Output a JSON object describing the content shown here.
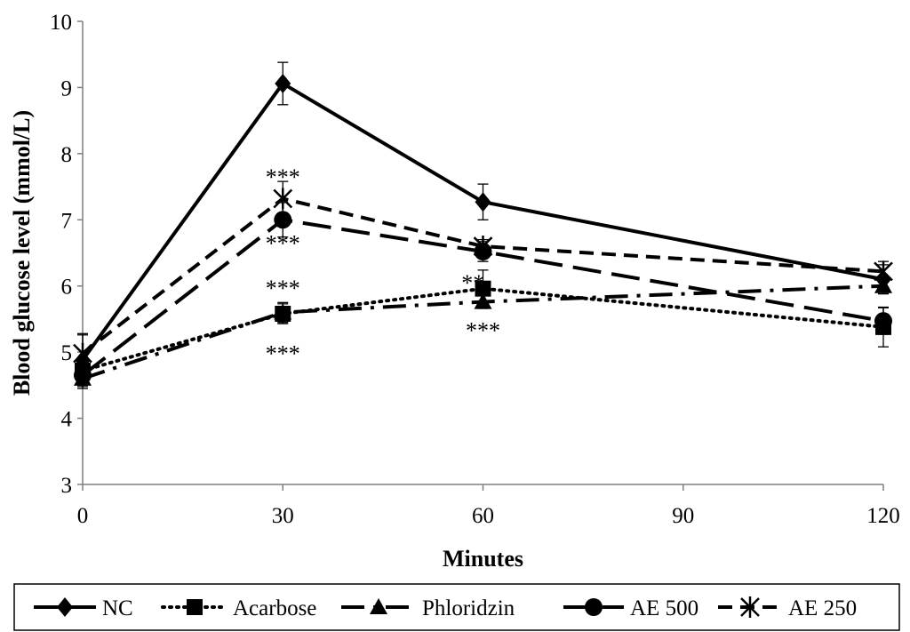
{
  "chart_data": {
    "type": "line",
    "title": "",
    "xlabel": "Minutes",
    "ylabel": "Blood glucose level (mmol/L)",
    "x": [
      0,
      30,
      60,
      120
    ],
    "xticks": [
      0,
      30,
      60,
      90,
      120
    ],
    "yticks": [
      3,
      4,
      5,
      6,
      7,
      8,
      9,
      10
    ],
    "xlim": [
      0,
      120
    ],
    "ylim": [
      3,
      10
    ],
    "grid": false,
    "legend": "bottom",
    "series": [
      {
        "name": "NC",
        "line": "solid",
        "marker": "diamond",
        "values": [
          4.88,
          9.06,
          7.27,
          6.1
        ],
        "errors": [
          0.38,
          0.32,
          0.27,
          0.22
        ]
      },
      {
        "name": "Acarbose",
        "line": "dotted",
        "marker": "square",
        "values": [
          4.72,
          5.58,
          5.96,
          5.38
        ],
        "errors": [
          0.2,
          0.15,
          0.28,
          0.3
        ]
      },
      {
        "name": "Phloridzin",
        "line": "dashdot",
        "marker": "triangle",
        "values": [
          4.6,
          5.6,
          5.76,
          6.0
        ],
        "errors": [
          0.12,
          0.15,
          0.1,
          0.1
        ]
      },
      {
        "name": "AE 500",
        "line": "longdash",
        "marker": "circle",
        "values": [
          4.65,
          7.0,
          6.52,
          5.47
        ],
        "errors": [
          0.2,
          0.26,
          0.15,
          0.2
        ]
      },
      {
        "name": "AE 250",
        "line": "dash",
        "marker": "star",
        "values": [
          4.98,
          7.32,
          6.6,
          6.22
        ],
        "errors": [
          0.3,
          0.26,
          0.1,
          0.15
        ]
      }
    ],
    "annotations": [
      {
        "text": "***",
        "x": 30,
        "y": 7.65
      },
      {
        "text": "***",
        "x": 30,
        "y": 6.65
      },
      {
        "text": "***",
        "x": 30,
        "y": 5.97
      },
      {
        "text": "***",
        "x": 30,
        "y": 4.98
      },
      {
        "text": "**",
        "x": 58.5,
        "y": 6.05
      },
      {
        "text": "***",
        "x": 60,
        "y": 5.33
      }
    ]
  }
}
